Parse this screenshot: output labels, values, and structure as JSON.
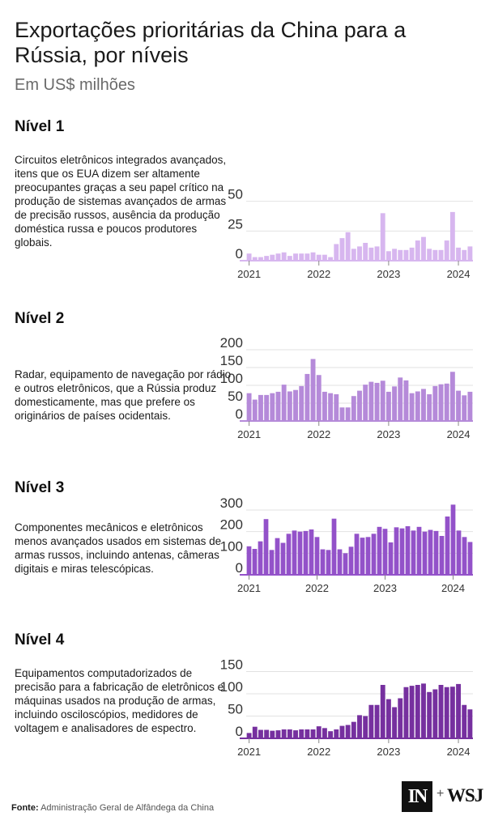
{
  "header": {
    "title": "Exportações prioritárias da China para a Rússia, por níveis",
    "subtitle": "Em US$ milhões"
  },
  "colors": [
    "#d7b6ef",
    "#b58ad9",
    "#9352c9",
    "#76309f"
  ],
  "chart_data": [
    {
      "type": "bar",
      "title": "Nível 1",
      "description": "Circuitos eletrônicos integrados avançados, itens que os EUA dizem  ser altamente preocupantes graças a seu papel crítico na produção de sistemas avançados de armas de precisão russos, ausência da produção doméstica russa e poucos produtores globais.",
      "x_tick_labels": [
        "2021",
        "2022",
        "2023",
        "2024"
      ],
      "y_tick_labels": [
        "0",
        "25",
        "50"
      ],
      "ylim": [
        0,
        60
      ],
      "values": [
        6,
        3,
        3,
        4,
        5,
        6,
        7,
        4,
        6,
        6,
        6,
        7,
        5,
        5,
        3,
        14,
        19,
        24,
        10,
        12,
        15,
        11,
        12,
        40,
        8,
        10,
        9,
        9,
        11,
        17,
        20,
        10,
        9,
        9,
        17,
        41,
        11,
        9,
        12
      ]
    },
    {
      "type": "bar",
      "title": "Nível 2",
      "description": "Radar, equipamento de navegação por rádio e outros eletrônicos, que a Rússia produz domesticamente, mas que prefere os originários de países ocidentais.",
      "x_tick_labels": [
        "2021",
        "2022",
        "2023",
        "2024"
      ],
      "y_tick_labels": [
        "0",
        "50",
        "100",
        "150",
        "200"
      ],
      "ylim": [
        0,
        200
      ],
      "values": [
        78,
        60,
        73,
        73,
        78,
        82,
        102,
        83,
        87,
        98,
        132,
        174,
        129,
        82,
        78,
        75,
        38,
        38,
        70,
        85,
        102,
        110,
        107,
        113,
        82,
        97,
        122,
        114,
        78,
        83,
        90,
        75,
        98,
        103,
        105,
        138,
        85,
        72,
        82
      ]
    },
    {
      "type": "bar",
      "title": "Nível 3",
      "description": "Componentes mecânicos e eletrônicos menos avançados usados em sistemas de armas russos, incluindo antenas, câmeras digitais e miras telescópicas.",
      "x_tick_labels": [
        "2021",
        "2022",
        "2023",
        "2024"
      ],
      "y_tick_labels": [
        "0",
        "100",
        "200",
        "300"
      ],
      "ylim": [
        0,
        330
      ],
      "values": [
        132,
        120,
        155,
        258,
        115,
        170,
        148,
        190,
        205,
        200,
        203,
        210,
        175,
        118,
        115,
        260,
        118,
        100,
        130,
        190,
        172,
        175,
        190,
        222,
        213,
        150,
        220,
        215,
        225,
        205,
        222,
        200,
        208,
        203,
        180,
        270,
        325,
        205,
        175,
        152
      ]
    },
    {
      "type": "bar",
      "title": "Nível 4",
      "description": "Equipamentos computadorizados de precisão para a fabricação de eletrônicos e máquinas usados na produção de armas, incluindo osciloscópios, medidores de voltagem e analisadores de espectro.",
      "x_tick_labels": [
        "2021",
        "2022",
        "2023",
        "2024"
      ],
      "y_tick_labels": [
        "0",
        "50",
        "100",
        "150"
      ],
      "ylim": [
        0,
        160
      ],
      "values": [
        12,
        26,
        19,
        19,
        17,
        18,
        20,
        20,
        18,
        20,
        20,
        20,
        27,
        23,
        16,
        20,
        28,
        30,
        37,
        52,
        50,
        75,
        75,
        120,
        88,
        70,
        90,
        115,
        118,
        120,
        123,
        104,
        110,
        120,
        115,
        116,
        122,
        75,
        65
      ]
    }
  ],
  "footer": {
    "source_label": "Fonte:",
    "source_value": "Administração Geral de Alfândega da China",
    "logo_in": "IN",
    "logo_plus": "+",
    "logo_wsj": "WSJ"
  }
}
